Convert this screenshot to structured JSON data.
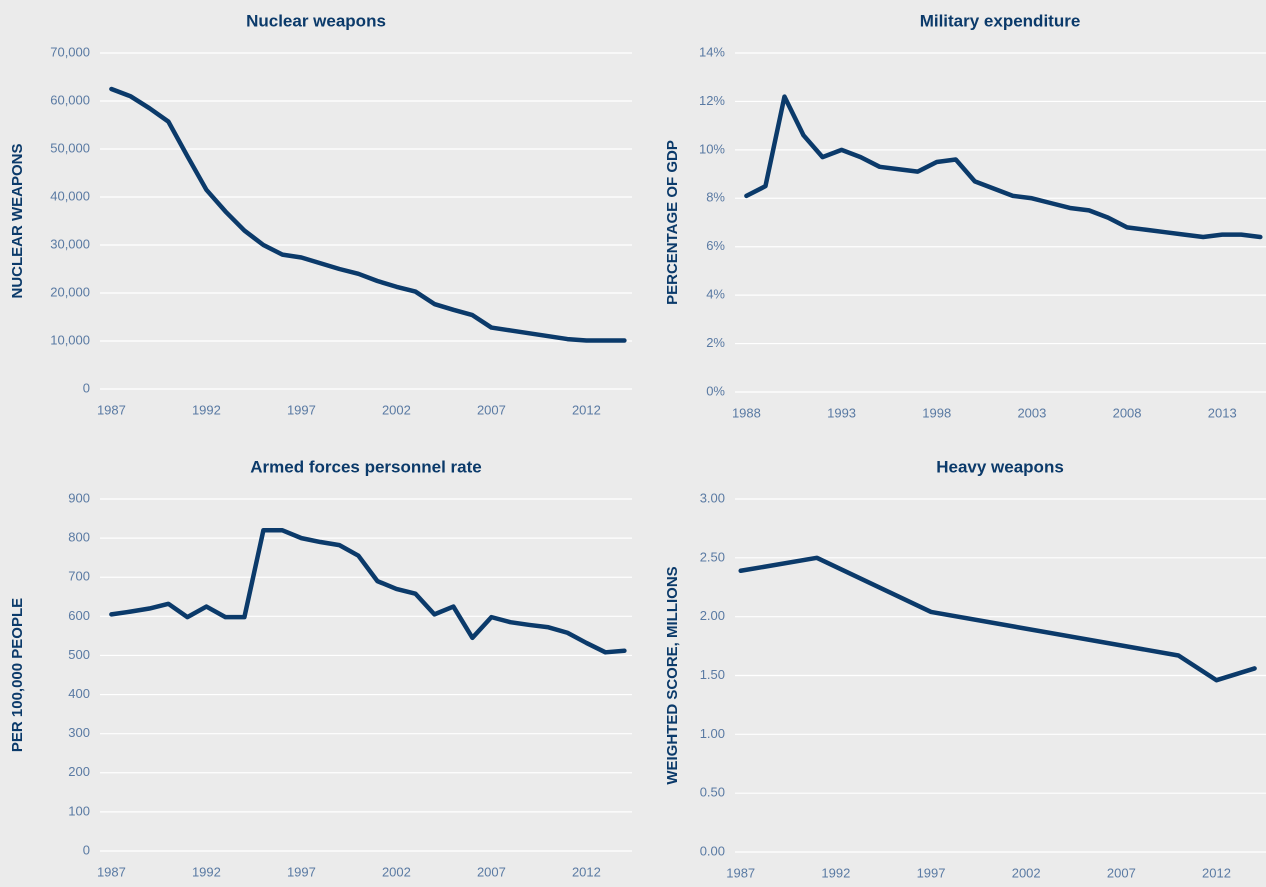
{
  "chart_data": [
    {
      "type": "line",
      "title": "Nuclear weapons",
      "ylabel": "NUCLEAR WEAPONS",
      "color": "#0b3a6a",
      "grid": true,
      "x": [
        1987,
        1988,
        1989,
        1990,
        1991,
        1992,
        1993,
        1994,
        1995,
        1996,
        1997,
        1998,
        1999,
        2000,
        2001,
        2002,
        2003,
        2004,
        2005,
        2006,
        2007,
        2008,
        2009,
        2010,
        2011,
        2012,
        2013,
        2014
      ],
      "values": [
        62500,
        61000,
        58500,
        55700,
        48500,
        41500,
        37000,
        33000,
        30000,
        28000,
        27400,
        26200,
        25000,
        24000,
        22500,
        21300,
        20300,
        17700,
        16500,
        15400,
        12800,
        12200,
        11600,
        11000,
        10400,
        10100,
        10100,
        10100
      ],
      "xlim": [
        1986.4,
        2014.4
      ],
      "xticks": [
        1987,
        1992,
        1997,
        2002,
        2007,
        2012
      ],
      "ylim": [
        0,
        70000
      ],
      "yticks": [
        0,
        {
          "value": 10000,
          "label": "10,000"
        },
        {
          "value": 20000,
          "label": "20,000"
        },
        {
          "value": 30000,
          "label": "30,000"
        },
        {
          "value": 40000,
          "label": "40,000"
        },
        {
          "value": 50000,
          "label": "50,000"
        },
        {
          "value": 60000,
          "label": "60,000"
        },
        {
          "value": 70000,
          "label": "70,000"
        }
      ]
    },
    {
      "type": "line",
      "title": "Military expenditure",
      "ylabel": "PERCENTAGE OF GDP",
      "color": "#0b3a6a",
      "grid": true,
      "x": [
        1988,
        1989,
        1990,
        1991,
        1992,
        1993,
        1994,
        1995,
        1996,
        1997,
        1998,
        1999,
        2000,
        2001,
        2002,
        2003,
        2004,
        2005,
        2006,
        2007,
        2008,
        2009,
        2010,
        2011,
        2012,
        2013,
        2014,
        2015
      ],
      "values": [
        8.1,
        8.5,
        12.2,
        10.6,
        9.7,
        10.0,
        9.7,
        9.3,
        9.2,
        9.1,
        9.5,
        9.6,
        8.7,
        8.4,
        8.1,
        8.0,
        7.8,
        7.6,
        7.5,
        7.2,
        6.8,
        6.7,
        6.6,
        6.5,
        6.4,
        6.5,
        6.5,
        6.4
      ],
      "xlim": [
        1987.4,
        2015.3
      ],
      "xticks": [
        1988,
        1993,
        1998,
        2003,
        2008,
        2013
      ],
      "ylim": [
        0,
        14
      ],
      "yticks": [
        {
          "value": 0,
          "label": "0%"
        },
        {
          "value": 2,
          "label": "2%"
        },
        {
          "value": 4,
          "label": "4%"
        },
        {
          "value": 6,
          "label": "6%"
        },
        {
          "value": 8,
          "label": "8%"
        },
        {
          "value": 10,
          "label": "10%"
        },
        {
          "value": 12,
          "label": "12%"
        },
        {
          "value": 14,
          "label": "14%"
        }
      ]
    },
    {
      "type": "line",
      "title": "Armed forces personnel rate",
      "ylabel": "PER 100,000 PEOPLE",
      "color": "#0b3a6a",
      "grid": true,
      "x": [
        1987,
        1988,
        1989,
        1990,
        1991,
        1992,
        1993,
        1994,
        1995,
        1996,
        1997,
        1998,
        1999,
        2000,
        2001,
        2002,
        2003,
        2004,
        2005,
        2006,
        2007,
        2008,
        2009,
        2010,
        2011,
        2012,
        2013,
        2014
      ],
      "values": [
        605,
        612,
        620,
        632,
        598,
        625,
        598,
        598,
        820,
        820,
        800,
        790,
        782,
        755,
        690,
        670,
        658,
        605,
        625,
        545,
        598,
        585,
        578,
        572,
        558,
        532,
        508,
        512
      ],
      "xlim": [
        1986.4,
        2014.4
      ],
      "xticks": [
        1987,
        1992,
        1997,
        2002,
        2007,
        2012
      ],
      "ylim": [
        0,
        900
      ],
      "yticks": [
        0,
        100,
        200,
        300,
        400,
        500,
        600,
        700,
        800,
        900
      ]
    },
    {
      "type": "line",
      "title": "Heavy weapons",
      "ylabel": "WEIGHTED SCORE, MILLIONS",
      "color": "#0b3a6a",
      "grid": true,
      "x": [
        1987,
        1991,
        1997,
        2010,
        2012,
        2014
      ],
      "values": [
        2.39,
        2.5,
        2.04,
        1.67,
        1.46,
        1.56
      ],
      "xlim": [
        1986.7,
        2014.6
      ],
      "xticks": [
        1987,
        1992,
        1997,
        2002,
        2007,
        2012
      ],
      "ylim": [
        0,
        3
      ],
      "yticks": [
        {
          "value": 0,
          "label": "0.00"
        },
        {
          "value": 0.5,
          "label": "0.50"
        },
        {
          "value": 1,
          "label": "1.00"
        },
        {
          "value": 1.5,
          "label": "1.50"
        },
        {
          "value": 2,
          "label": "2.00"
        },
        {
          "value": 2.5,
          "label": "2.50"
        },
        {
          "value": 3,
          "label": "3.00"
        }
      ]
    }
  ]
}
